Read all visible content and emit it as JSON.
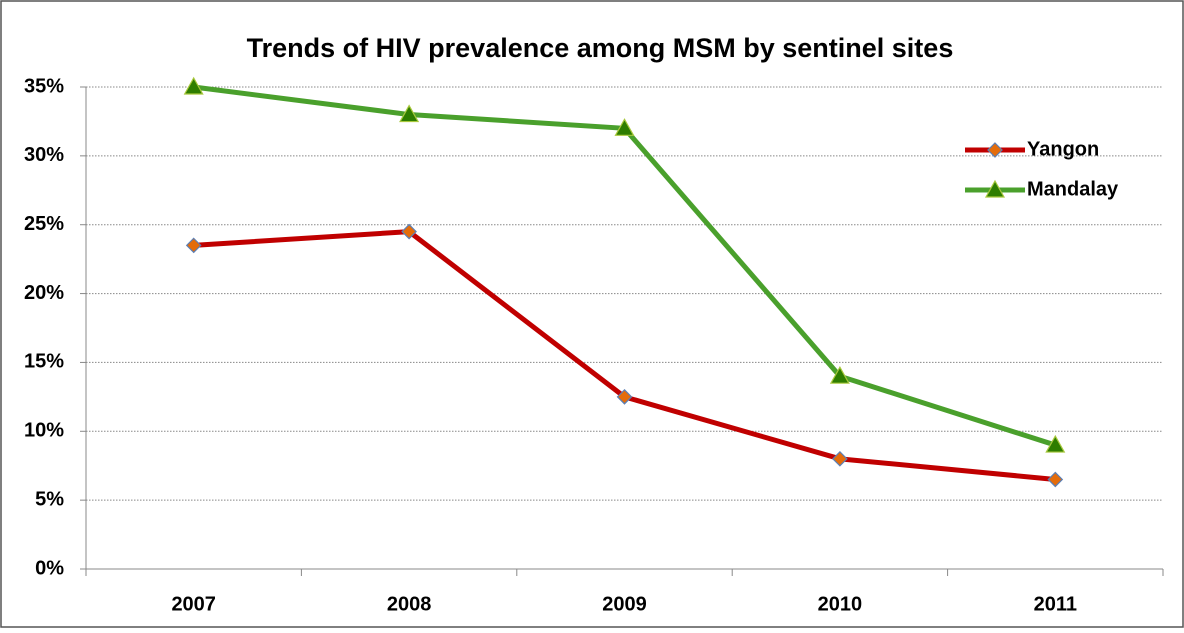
{
  "chart_data": {
    "type": "line",
    "title": "Trends of HIV prevalence among MSM by sentinel sites",
    "categories": [
      "2007",
      "2008",
      "2009",
      "2010",
      "2011"
    ],
    "series": [
      {
        "name": "Yangon",
        "color": "#c00000",
        "marker": "diamond",
        "marker_color": "#e46c0a",
        "values": [
          23.5,
          24.5,
          12.5,
          8,
          6.5
        ]
      },
      {
        "name": "Mandalay",
        "color": "#4aa02c",
        "marker": "triangle",
        "marker_color": "#2e7d00",
        "values": [
          35,
          33,
          32,
          14,
          9
        ]
      }
    ],
    "ylim": [
      0,
      35
    ],
    "yticks": [
      {
        "value": 0,
        "label": "0%"
      },
      {
        "value": 5,
        "label": "5%"
      },
      {
        "value": 10,
        "label": "10%"
      },
      {
        "value": 15,
        "label": "15%"
      },
      {
        "value": 20,
        "label": "20%"
      },
      {
        "value": 25,
        "label": "25%"
      },
      {
        "value": 30,
        "label": "30%"
      },
      {
        "value": 35,
        "label": "35%"
      }
    ],
    "grid": true,
    "legend": "right"
  }
}
